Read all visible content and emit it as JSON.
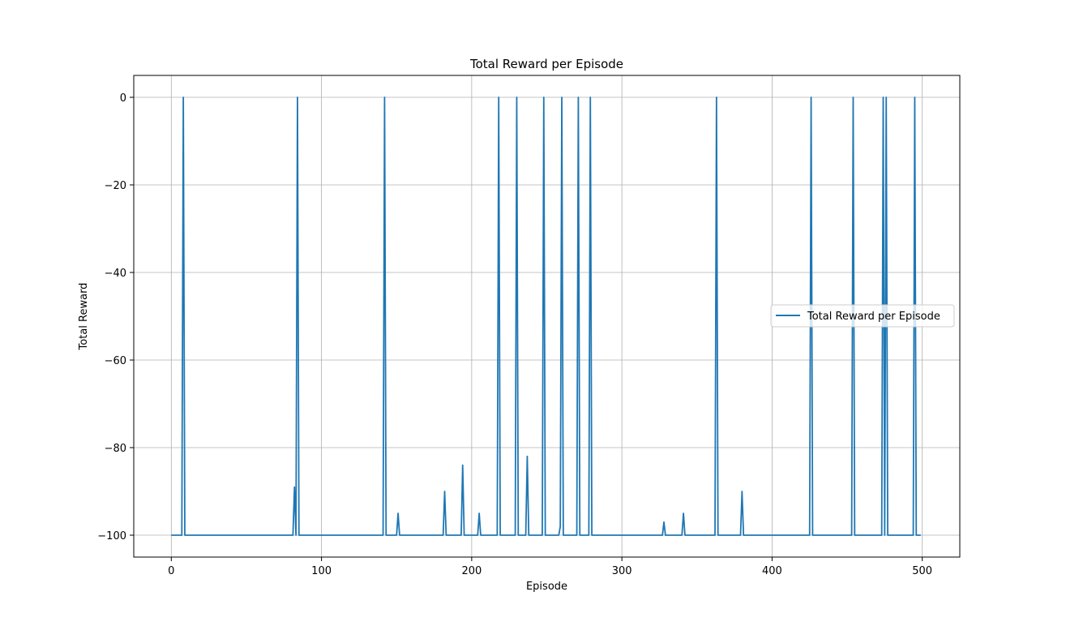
{
  "chart_data": {
    "type": "line",
    "title": "Total Reward per Episode",
    "xlabel": "Episode",
    "ylabel": "Total Reward",
    "xlim": [
      -25,
      525
    ],
    "ylim": [
      -105,
      5
    ],
    "x_ticks": [
      0,
      100,
      200,
      300,
      400,
      500
    ],
    "x_tick_labels": [
      "0",
      "100",
      "200",
      "300",
      "400",
      "500"
    ],
    "y_ticks": [
      0,
      -20,
      -40,
      -60,
      -80,
      -100
    ],
    "y_tick_labels": [
      "0",
      "−20",
      "−40",
      "−60",
      "−80",
      "−100"
    ],
    "grid": true,
    "legend": {
      "placement": "center-right",
      "entries": [
        "Total Reward per Episode"
      ]
    },
    "x_range": [
      0,
      499
    ],
    "baseline": -100,
    "series": [
      {
        "name": "Total Reward per Episode",
        "color": "#1f77b4",
        "spikes": [
          {
            "x": 8,
            "y": 0
          },
          {
            "x": 82,
            "y": -89
          },
          {
            "x": 84,
            "y": 0
          },
          {
            "x": 142,
            "y": 0
          },
          {
            "x": 151,
            "y": -95
          },
          {
            "x": 182,
            "y": -90
          },
          {
            "x": 194,
            "y": -84
          },
          {
            "x": 205,
            "y": -95
          },
          {
            "x": 218,
            "y": 0
          },
          {
            "x": 230,
            "y": 0
          },
          {
            "x": 237,
            "y": -82
          },
          {
            "x": 248,
            "y": 0
          },
          {
            "x": 259,
            "y": -98
          },
          {
            "x": 260,
            "y": 0
          },
          {
            "x": 271,
            "y": 0
          },
          {
            "x": 279,
            "y": 0
          },
          {
            "x": 328,
            "y": -97
          },
          {
            "x": 341,
            "y": -95
          },
          {
            "x": 363,
            "y": 0
          },
          {
            "x": 380,
            "y": -90
          },
          {
            "x": 426,
            "y": 0
          },
          {
            "x": 454,
            "y": 0
          },
          {
            "x": 474,
            "y": 0
          },
          {
            "x": 476,
            "y": 0
          },
          {
            "x": 495,
            "y": 0
          }
        ]
      }
    ]
  }
}
